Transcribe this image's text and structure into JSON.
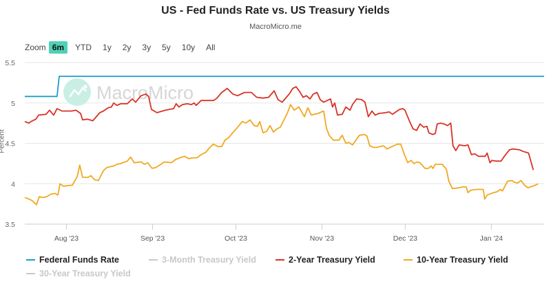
{
  "header": {
    "title": "US - Fed Funds Rate vs. US Treasury Yields",
    "subtitle": "MacroMicro.me"
  },
  "zoom": {
    "label": "Zoom",
    "buttons": [
      "6m",
      "YTD",
      "1y",
      "2y",
      "3y",
      "5y",
      "10y",
      "All"
    ],
    "active": "6m"
  },
  "watermark": {
    "text": "MacroMicro"
  },
  "chart_data": {
    "type": "line",
    "title": "US - Fed Funds Rate vs. US Treasury Yields",
    "subtitle": "MacroMicro.me",
    "xlabel": "",
    "ylabel": "Percent",
    "x_unit": "days since 2023-07-17",
    "xlim": [
      0,
      187
    ],
    "ylim": [
      3.5,
      5.5
    ],
    "yticks": [
      3.5,
      4,
      4.5,
      5,
      5.5
    ],
    "ytick_labels": [
      "3.5",
      "4",
      "4.5",
      "5",
      "5.5"
    ],
    "xticks": [
      {
        "x": 15,
        "label": "Aug '23"
      },
      {
        "x": 46,
        "label": "Sep '23"
      },
      {
        "x": 76,
        "label": "Oct '23"
      },
      {
        "x": 107,
        "label": "Nov '23"
      },
      {
        "x": 137,
        "label": "Dec '23"
      },
      {
        "x": 168,
        "label": "Jan '24"
      }
    ],
    "grid": true,
    "legend_position": "bottom",
    "series": [
      {
        "name": "Federal Funds Rate",
        "color": "#1a9ec9",
        "visible": true,
        "points": [
          [
            0,
            5.08
          ],
          [
            11.6,
            5.08
          ],
          [
            12.4,
            5.33
          ],
          [
            187,
            5.33
          ]
        ]
      },
      {
        "name": "3-Month Treasury Yield",
        "color": "#c8c8c8",
        "visible": false,
        "points": []
      },
      {
        "name": "2-Year Treasury Yield",
        "color": "#d93025",
        "visible": true,
        "points": [
          [
            0,
            4.77
          ],
          [
            1.5,
            4.75
          ],
          [
            2.2,
            4.77
          ],
          [
            4,
            4.8
          ],
          [
            5,
            4.85
          ],
          [
            7.7,
            4.86
          ],
          [
            8.9,
            4.91
          ],
          [
            10.4,
            4.85
          ],
          [
            11.6,
            4.93
          ],
          [
            13.4,
            4.9
          ],
          [
            16.9,
            4.9
          ],
          [
            18.4,
            4.91
          ],
          [
            20.1,
            4.87
          ],
          [
            20.8,
            4.79
          ],
          [
            22.6,
            4.8
          ],
          [
            24.5,
            4.78
          ],
          [
            27,
            4.88
          ],
          [
            28.3,
            4.9
          ],
          [
            30,
            4.94
          ],
          [
            31.2,
            4.95
          ],
          [
            32,
            5.0
          ],
          [
            33.2,
            4.97
          ],
          [
            34.5,
            4.99
          ],
          [
            36.9,
            4.99
          ],
          [
            38.7,
            5.05
          ],
          [
            39.9,
            5.01
          ],
          [
            41.9,
            5.09
          ],
          [
            43.6,
            5.11
          ],
          [
            44.6,
            5.08
          ],
          [
            45.6,
            4.92
          ],
          [
            47.6,
            4.88
          ],
          [
            50.6,
            4.91
          ],
          [
            53.6,
            4.93
          ],
          [
            54.5,
            4.99
          ],
          [
            55.5,
            4.95
          ],
          [
            56.8,
            4.98
          ],
          [
            58.5,
            4.99
          ],
          [
            60,
            4.98
          ],
          [
            61,
            5.0
          ],
          [
            61.7,
            4.97
          ],
          [
            63.5,
            5.03
          ],
          [
            65.5,
            5.03
          ],
          [
            68,
            5.03
          ],
          [
            69.2,
            5.06
          ],
          [
            70.9,
            5.13
          ],
          [
            72.9,
            5.18
          ],
          [
            74.9,
            5.11
          ],
          [
            76.6,
            5.09
          ],
          [
            79.1,
            5.13
          ],
          [
            81.6,
            5.13
          ],
          [
            83.5,
            5.07
          ],
          [
            85.8,
            5.06
          ],
          [
            87.8,
            5.07
          ],
          [
            89.8,
            5.15
          ],
          [
            91.2,
            5.04
          ],
          [
            92.7,
            5.01
          ],
          [
            94.2,
            5.07
          ],
          [
            95.2,
            5.11
          ],
          [
            96.5,
            5.18
          ],
          [
            97.7,
            5.2
          ],
          [
            99,
            5.14
          ],
          [
            100.2,
            5.07
          ],
          [
            101.4,
            5.09
          ],
          [
            102.7,
            5.05
          ],
          [
            103.9,
            5.11
          ],
          [
            105.2,
            5.13
          ],
          [
            106.4,
            5.04
          ],
          [
            107.6,
            5.01
          ],
          [
            110.1,
            5.05
          ],
          [
            110.8,
            4.95
          ],
          [
            111.6,
            5.0
          ],
          [
            112.6,
            4.85
          ],
          [
            114.3,
            4.86
          ],
          [
            115.6,
            4.95
          ],
          [
            117.1,
            4.91
          ],
          [
            118,
            4.98
          ],
          [
            119.5,
            5.05
          ],
          [
            121.3,
            5.04
          ],
          [
            122.5,
            5.01
          ],
          [
            123.7,
            4.83
          ],
          [
            125,
            4.9
          ],
          [
            126.2,
            4.85
          ],
          [
            127.5,
            4.87
          ],
          [
            129.9,
            4.88
          ],
          [
            131.2,
            4.89
          ],
          [
            132.4,
            4.86
          ],
          [
            134.9,
            4.92
          ],
          [
            136.1,
            4.93
          ],
          [
            136.9,
            4.91
          ],
          [
            138.6,
            4.77
          ],
          [
            139.8,
            4.68
          ],
          [
            141.1,
            4.66
          ],
          [
            142.3,
            4.74
          ],
          [
            143.6,
            4.7
          ],
          [
            144.8,
            4.71
          ],
          [
            145.5,
            4.63
          ],
          [
            146.8,
            4.61
          ],
          [
            147.8,
            4.62
          ],
          [
            148.5,
            4.74
          ],
          [
            149.7,
            4.75
          ],
          [
            151,
            4.74
          ],
          [
            152.2,
            4.72
          ],
          [
            153.4,
            4.75
          ],
          [
            154.2,
            4.47
          ],
          [
            155.2,
            4.41
          ],
          [
            156.4,
            4.48
          ],
          [
            158.4,
            4.47
          ],
          [
            159.6,
            4.48
          ],
          [
            160.8,
            4.36
          ],
          [
            162.1,
            4.37
          ],
          [
            163.3,
            4.34
          ],
          [
            165.8,
            4.34
          ],
          [
            166.5,
            4.38
          ],
          [
            167.5,
            4.26
          ],
          [
            168.2,
            4.29
          ],
          [
            169.5,
            4.28
          ],
          [
            171.5,
            4.28
          ],
          [
            172.7,
            4.34
          ],
          [
            174.5,
            4.42
          ],
          [
            175.7,
            4.43
          ],
          [
            178.2,
            4.42
          ],
          [
            179.4,
            4.4
          ],
          [
            181.4,
            4.38
          ],
          [
            183.1,
            4.17
          ]
        ]
      },
      {
        "name": "10-Year Treasury Yield",
        "color": "#f0a820",
        "visible": true,
        "points": [
          [
            0,
            3.83
          ],
          [
            1.5,
            3.81
          ],
          [
            2.7,
            3.79
          ],
          [
            4.2,
            3.74
          ],
          [
            5.2,
            3.84
          ],
          [
            6.4,
            3.83
          ],
          [
            7.9,
            3.84
          ],
          [
            9.4,
            3.87
          ],
          [
            10.9,
            3.88
          ],
          [
            11.9,
            3.86
          ],
          [
            12.7,
            4.0
          ],
          [
            13.9,
            3.97
          ],
          [
            16.1,
            3.98
          ],
          [
            17.1,
            3.98
          ],
          [
            18.9,
            4.09
          ],
          [
            19.8,
            4.23
          ],
          [
            20.8,
            4.08
          ],
          [
            22.8,
            4.08
          ],
          [
            23.8,
            4.1
          ],
          [
            25.1,
            4.05
          ],
          [
            26.5,
            4.04
          ],
          [
            28.3,
            4.16
          ],
          [
            29.5,
            4.2
          ],
          [
            32,
            4.22
          ],
          [
            33.2,
            4.24
          ],
          [
            34.5,
            4.25
          ],
          [
            36.9,
            4.28
          ],
          [
            38.1,
            4.33
          ],
          [
            39.4,
            4.26
          ],
          [
            41.9,
            4.27
          ],
          [
            43.1,
            4.24
          ],
          [
            44.3,
            4.26
          ],
          [
            45.8,
            4.19
          ],
          [
            47.1,
            4.2
          ],
          [
            48.5,
            4.23
          ],
          [
            50.3,
            4.27
          ],
          [
            52.8,
            4.26
          ],
          [
            54.3,
            4.3
          ],
          [
            55.8,
            4.32
          ],
          [
            57.5,
            4.34
          ],
          [
            59,
            4.31
          ],
          [
            60.3,
            4.32
          ],
          [
            62,
            4.32
          ],
          [
            63.5,
            4.36
          ],
          [
            65.2,
            4.39
          ],
          [
            66.4,
            4.44
          ],
          [
            67.9,
            4.49
          ],
          [
            69.6,
            4.46
          ],
          [
            70.9,
            4.46
          ],
          [
            72.1,
            4.54
          ],
          [
            73.4,
            4.57
          ],
          [
            74.6,
            4.62
          ],
          [
            76.4,
            4.69
          ],
          [
            78.3,
            4.77
          ],
          [
            79.6,
            4.75
          ],
          [
            81.1,
            4.79
          ],
          [
            82.6,
            4.72
          ],
          [
            83.8,
            4.71
          ],
          [
            84.6,
            4.77
          ],
          [
            85.8,
            4.63
          ],
          [
            87.1,
            4.65
          ],
          [
            88.3,
            4.72
          ],
          [
            89.5,
            4.64
          ],
          [
            90.8,
            4.68
          ],
          [
            92,
            4.7
          ],
          [
            94.5,
            4.87
          ],
          [
            95.7,
            4.98
          ],
          [
            97,
            4.91
          ],
          [
            98.7,
            4.95
          ],
          [
            100.7,
            4.83
          ],
          [
            101.9,
            4.94
          ],
          [
            103.2,
            4.85
          ],
          [
            105.6,
            4.87
          ],
          [
            107.6,
            4.9
          ],
          [
            108.6,
            4.69
          ],
          [
            109.6,
            4.6
          ],
          [
            111.1,
            4.54
          ],
          [
            113.1,
            4.54
          ],
          [
            114.3,
            4.6
          ],
          [
            115.6,
            4.5
          ],
          [
            116.8,
            4.51
          ],
          [
            118,
            4.48
          ],
          [
            120.5,
            4.6
          ],
          [
            122.3,
            4.61
          ],
          [
            123.2,
            4.59
          ],
          [
            124.2,
            4.47
          ],
          [
            125.5,
            4.45
          ],
          [
            126.7,
            4.45
          ],
          [
            129.2,
            4.47
          ],
          [
            130.4,
            4.43
          ],
          [
            131.6,
            4.45
          ],
          [
            134.1,
            4.49
          ],
          [
            135.4,
            4.49
          ],
          [
            136.6,
            4.37
          ],
          [
            137.9,
            4.26
          ],
          [
            139.1,
            4.29
          ],
          [
            140.1,
            4.25
          ],
          [
            141.3,
            4.27
          ],
          [
            142.3,
            4.26
          ],
          [
            144.1,
            4.19
          ],
          [
            145.3,
            4.19
          ],
          [
            146.3,
            4.22
          ],
          [
            147,
            4.19
          ],
          [
            147.8,
            4.24
          ],
          [
            150.3,
            4.24
          ],
          [
            151.8,
            4.18
          ],
          [
            152.7,
            4.03
          ],
          [
            154,
            3.94
          ],
          [
            156.4,
            3.95
          ],
          [
            157.7,
            3.96
          ],
          [
            158.9,
            3.96
          ],
          [
            159.6,
            3.89
          ],
          [
            160.6,
            3.92
          ],
          [
            162.6,
            3.93
          ],
          [
            165.1,
            3.93
          ],
          [
            165.6,
            3.81
          ],
          [
            166.5,
            3.86
          ],
          [
            168.8,
            3.89
          ],
          [
            170,
            3.9
          ],
          [
            171.3,
            3.93
          ],
          [
            172,
            3.91
          ],
          [
            173.8,
            4.03
          ],
          [
            175.5,
            4.04
          ],
          [
            176.2,
            4.02
          ],
          [
            177.5,
            4.01
          ],
          [
            178.7,
            4.04
          ],
          [
            180,
            3.98
          ],
          [
            181.2,
            3.95
          ],
          [
            183.7,
            3.98
          ],
          [
            184.9,
            4.0
          ]
        ]
      },
      {
        "name": "30-Year Treasury Yield",
        "color": "#c8c8c8",
        "visible": false,
        "points": []
      }
    ]
  }
}
